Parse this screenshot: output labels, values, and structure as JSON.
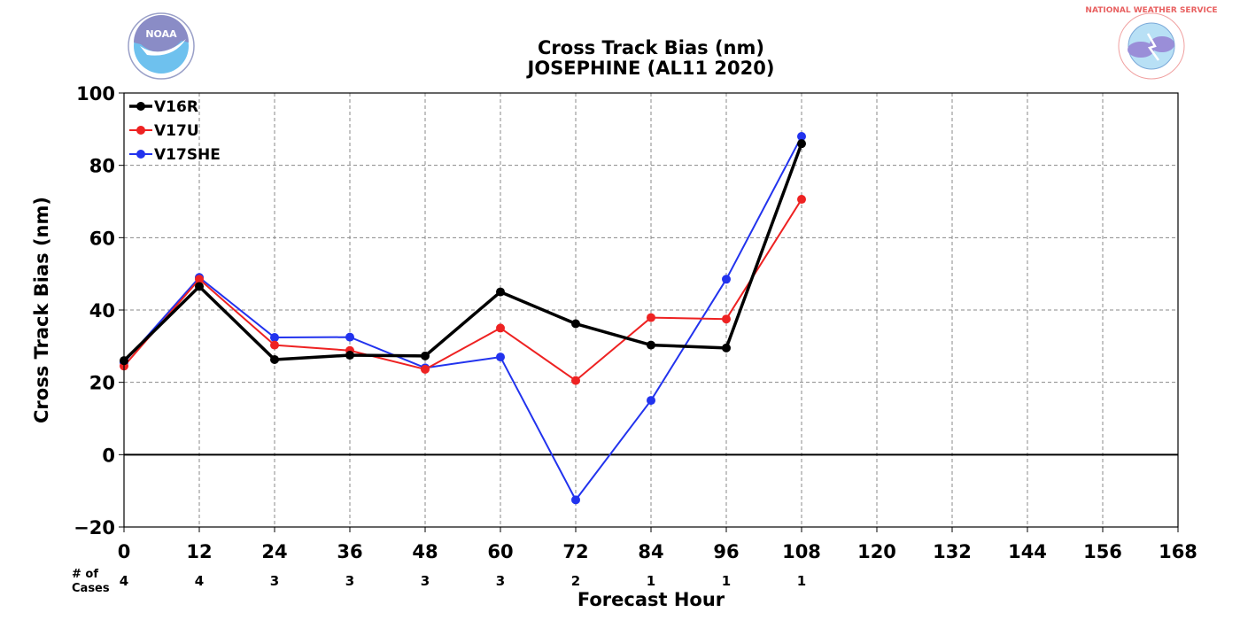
{
  "chart_data": {
    "type": "line",
    "title": "Cross Track Bias (nm)",
    "subtitle": "JOSEPHINE (AL11 2020)",
    "xlabel": "Forecast Hour",
    "ylabel": "Cross Track Bias (nm)",
    "xlim": [
      0,
      168
    ],
    "ylim": [
      -20,
      100
    ],
    "xticks": [
      "0",
      "12",
      "24",
      "36",
      "48",
      "60",
      "72",
      "84",
      "96",
      "108",
      "120",
      "132",
      "144",
      "156",
      "168"
    ],
    "yticks": [
      "−20",
      "0",
      "20",
      "40",
      "60",
      "80",
      "100"
    ],
    "grid": true,
    "legend_position": "top-left",
    "x": [
      0,
      12,
      24,
      36,
      48,
      60,
      72,
      84,
      96,
      108
    ],
    "series": [
      {
        "name": "V16R",
        "color": "#000000",
        "values": [
          26,
          46.5,
          26.3,
          27.5,
          27.3,
          45,
          36.2,
          30.3,
          29.5,
          86
        ]
      },
      {
        "name": "V17U",
        "color": "#ee2222",
        "values": [
          24.5,
          48.5,
          30.3,
          28.8,
          23.6,
          35,
          20.5,
          37.9,
          37.5,
          70.6
        ]
      },
      {
        "name": "V17SHE",
        "color": "#2233ee",
        "values": [
          25.5,
          49,
          32.4,
          32.5,
          24,
          27,
          -12.5,
          15,
          48.5,
          88
        ]
      }
    ],
    "cases_label": "# of\nCases",
    "cases_label_lines": [
      "# of",
      "Cases"
    ],
    "cases": [
      "4",
      "4",
      "3",
      "3",
      "3",
      "3",
      "2",
      "1",
      "1",
      "1"
    ]
  },
  "logos": {
    "left_name": "noaa-logo",
    "left_text": "NOAA",
    "right_name": "national-weather-service-logo",
    "right_text": "NATIONAL WEATHER SERVICE"
  }
}
